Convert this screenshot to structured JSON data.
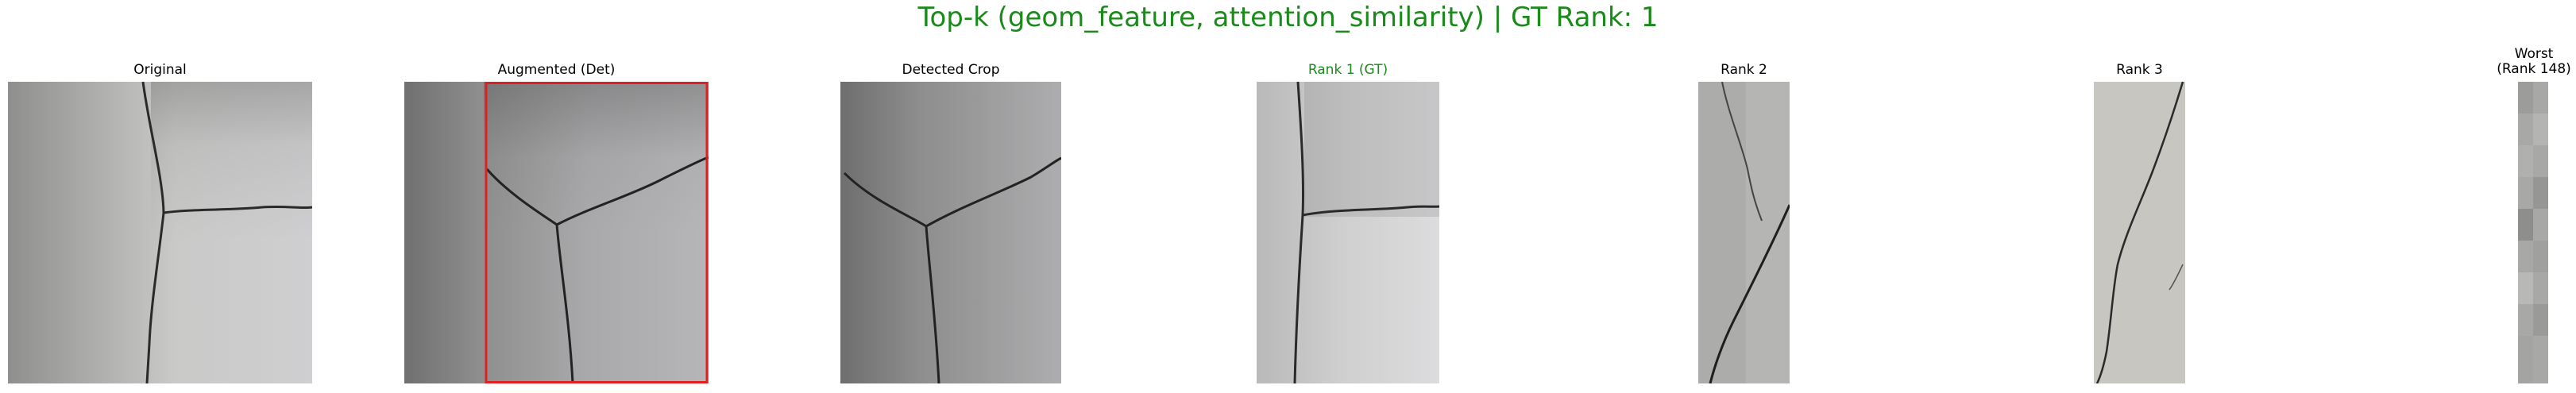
{
  "figure": {
    "title": "Top-k (geom_feature, attention_similarity) | GT Rank: 1",
    "title_color": "#1a8a1a"
  },
  "panels": {
    "original": {
      "label": "Original"
    },
    "augmented": {
      "label": "Augmented (Det)",
      "box_color": "#e02020"
    },
    "detected": {
      "label": "Detected Crop"
    },
    "rank1": {
      "label": "Rank 1 (GT)",
      "label_color": "#1a8a1a"
    },
    "rank2": {
      "label": "Rank 2"
    },
    "rank3": {
      "label": "Rank 3"
    },
    "worst": {
      "label_line1": "Worst",
      "label_line2": "(Rank 148)"
    }
  }
}
